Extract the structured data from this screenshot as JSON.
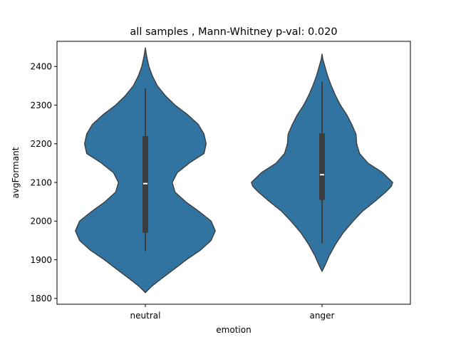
{
  "chart_data": {
    "type": "violin",
    "title": "all samples , Mann-Whitney p-val: 0.020",
    "xlabel": "emotion",
    "ylabel": "avgFormant",
    "ylim": [
      1785,
      2465
    ],
    "yticks": [
      1800,
      1900,
      2000,
      2100,
      2200,
      2300,
      2400
    ],
    "grid": false,
    "color": "#3274a1",
    "categories": [
      "neutral",
      "anger"
    ],
    "violins": [
      {
        "category": "neutral",
        "median": 2097,
        "q1": 1970,
        "q3": 2220,
        "whisker_low": 1922,
        "whisker_high": 2343,
        "density": [
          [
            1815,
            0.0
          ],
          [
            1830,
            0.08
          ],
          [
            1850,
            0.22
          ],
          [
            1875,
            0.4
          ],
          [
            1900,
            0.58
          ],
          [
            1925,
            0.78
          ],
          [
            1950,
            0.93
          ],
          [
            1975,
            0.99
          ],
          [
            2000,
            0.93
          ],
          [
            2025,
            0.76
          ],
          [
            2050,
            0.57
          ],
          [
            2075,
            0.42
          ],
          [
            2100,
            0.38
          ],
          [
            2125,
            0.45
          ],
          [
            2150,
            0.62
          ],
          [
            2175,
            0.83
          ],
          [
            2200,
            0.86
          ],
          [
            2225,
            0.83
          ],
          [
            2250,
            0.75
          ],
          [
            2275,
            0.6
          ],
          [
            2300,
            0.42
          ],
          [
            2325,
            0.28
          ],
          [
            2350,
            0.17
          ],
          [
            2375,
            0.1
          ],
          [
            2400,
            0.05
          ],
          [
            2425,
            0.02
          ],
          [
            2448,
            0.0
          ]
        ]
      },
      {
        "category": "anger",
        "median": 2120,
        "q1": 2055,
        "q3": 2227,
        "whisker_low": 1943,
        "whisker_high": 2360,
        "density": [
          [
            1870,
            0.0
          ],
          [
            1885,
            0.04
          ],
          [
            1910,
            0.1
          ],
          [
            1940,
            0.19
          ],
          [
            1970,
            0.3
          ],
          [
            2000,
            0.44
          ],
          [
            2025,
            0.57
          ],
          [
            2050,
            0.74
          ],
          [
            2075,
            0.9
          ],
          [
            2090,
            0.98
          ],
          [
            2100,
            1.0
          ],
          [
            2125,
            0.86
          ],
          [
            2150,
            0.65
          ],
          [
            2175,
            0.53
          ],
          [
            2200,
            0.49
          ],
          [
            2225,
            0.48
          ],
          [
            2250,
            0.42
          ],
          [
            2275,
            0.35
          ],
          [
            2300,
            0.26
          ],
          [
            2325,
            0.19
          ],
          [
            2350,
            0.13
          ],
          [
            2375,
            0.08
          ],
          [
            2400,
            0.04
          ],
          [
            2420,
            0.01
          ],
          [
            2432,
            0.0
          ]
        ]
      }
    ]
  }
}
